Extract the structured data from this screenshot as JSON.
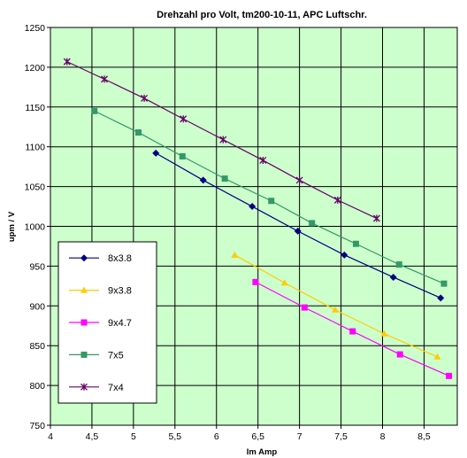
{
  "chart_data": {
    "type": "line",
    "title": "Drehzahl pro Volt, tm200-10-11, APC Luftschr.",
    "xlabel": "Im Amp",
    "ylabel": "upm / V",
    "xlim": [
      4,
      8.9
    ],
    "ylim": [
      750,
      1250
    ],
    "xticks": [
      4,
      4.5,
      5,
      5.5,
      6,
      6.5,
      7,
      7.5,
      8,
      8.5
    ],
    "xtick_labels": [
      "4",
      "4,5",
      "5",
      "5,5",
      "6",
      "6,5",
      "7",
      "7,5",
      "8",
      "8,5"
    ],
    "yticks": [
      750,
      800,
      850,
      900,
      950,
      1000,
      1050,
      1100,
      1150,
      1200,
      1250
    ],
    "ytick_labels": [
      "750",
      "800",
      "850",
      "900",
      "950",
      "1000",
      "1050",
      "1100",
      "1150",
      "1200",
      "1250"
    ],
    "grid": true,
    "legend_position": "bottom-left",
    "plot_background": "#ccffcc",
    "series": [
      {
        "name": "8x3.8",
        "color": "#000080",
        "marker": "diamond",
        "x": [
          5.27,
          5.84,
          6.43,
          6.98,
          7.54,
          8.13,
          8.7
        ],
        "y": [
          1092,
          1058,
          1025,
          994,
          964,
          936,
          910
        ]
      },
      {
        "name": "9x3.8",
        "color": "#ffcc00",
        "marker": "triangle",
        "x": [
          6.22,
          6.82,
          7.43,
          8.02,
          8.66
        ],
        "y": [
          964,
          929,
          895,
          865,
          836
        ]
      },
      {
        "name": "9x4.7",
        "color": "#ff00ff",
        "marker": "square",
        "x": [
          6.47,
          7.06,
          7.64,
          8.21,
          8.8
        ],
        "y": [
          930,
          898,
          868,
          839,
          812
        ]
      },
      {
        "name": "7x5",
        "color": "#339966",
        "marker": "square",
        "x": [
          4.53,
          5.06,
          5.59,
          6.1,
          6.66,
          7.15,
          7.68,
          8.2,
          8.74
        ],
        "y": [
          1145,
          1118,
          1088,
          1060,
          1032,
          1004,
          978,
          952,
          928
        ]
      },
      {
        "name": "7x4",
        "color": "#660066",
        "marker": "star",
        "x": [
          4.2,
          4.65,
          5.13,
          5.6,
          6.08,
          6.56,
          7.0,
          7.46,
          7.93
        ],
        "y": [
          1207,
          1185,
          1161,
          1135,
          1109,
          1083,
          1058,
          1033,
          1010
        ]
      }
    ]
  }
}
